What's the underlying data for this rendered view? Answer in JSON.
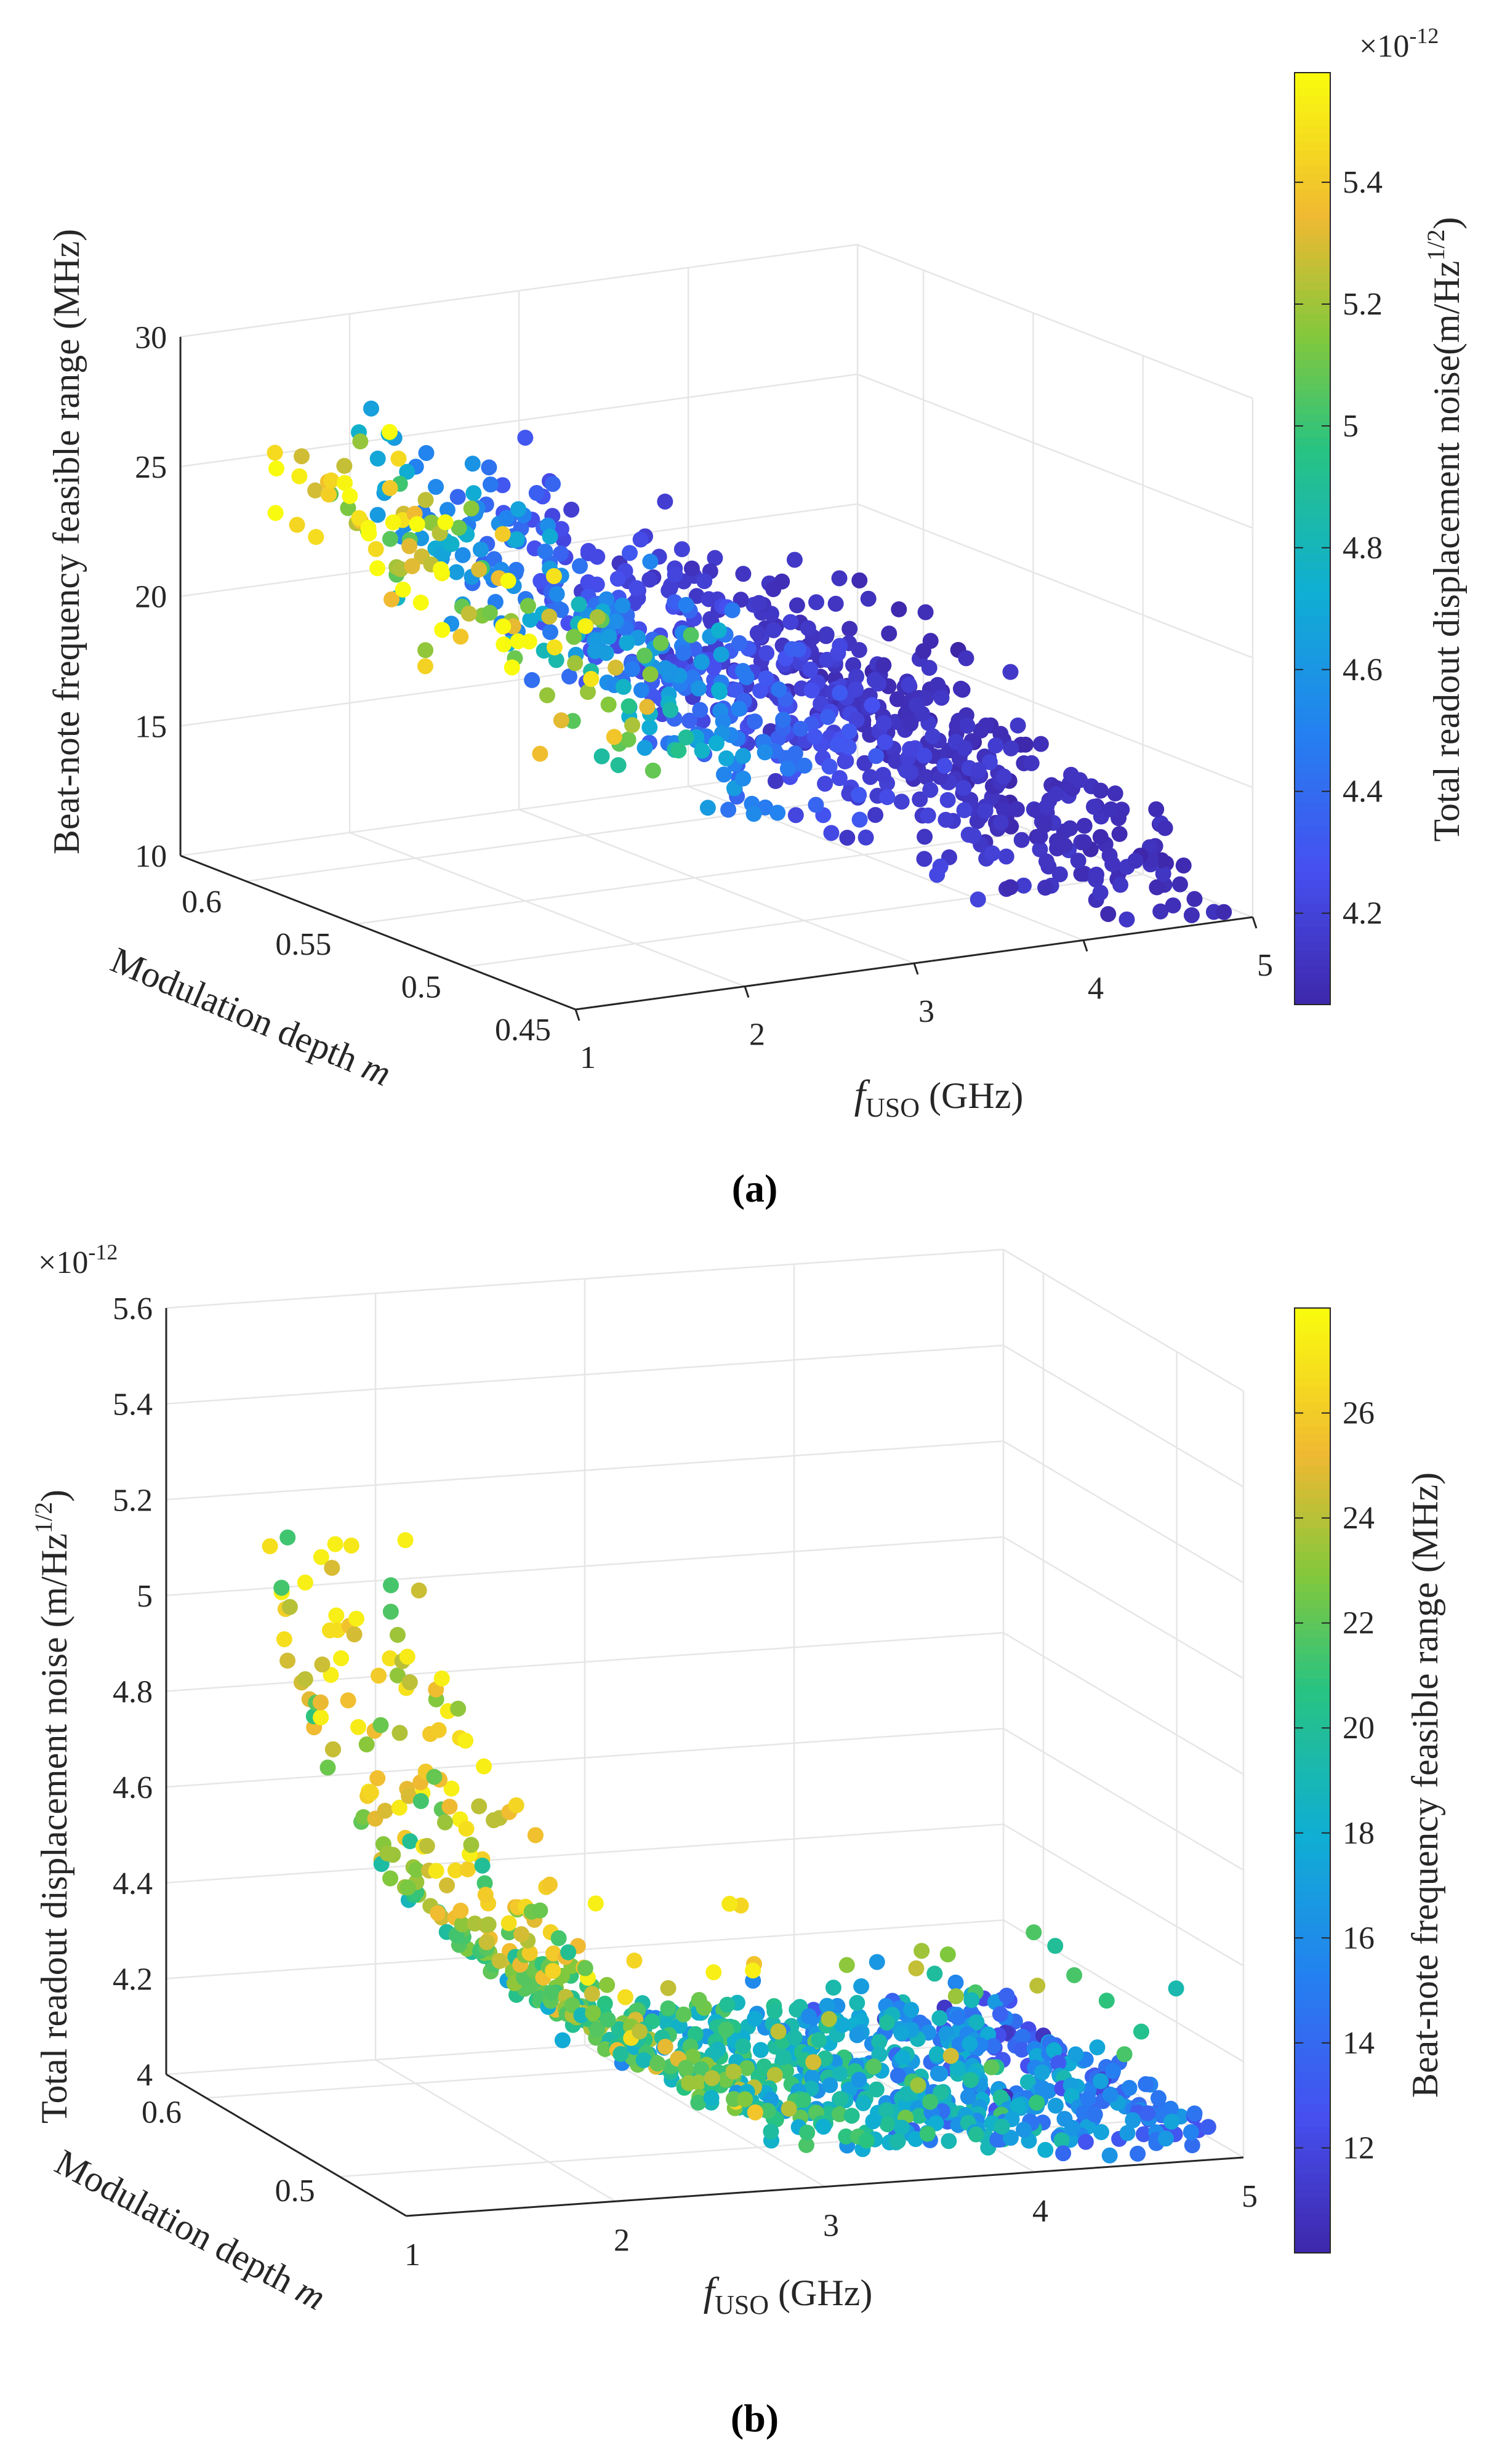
{
  "chart_data": [
    {
      "panel": "(a)",
      "type": "scatter3d",
      "x_label_pre": "f",
      "x_label_sub": "USO",
      "x_label_post": " (GHz)",
      "x_ticks": [
        "1",
        "2",
        "3",
        "4",
        "5"
      ],
      "x_range": [
        1,
        5
      ],
      "y_label_pre": "Modulation depth ",
      "y_label_var": "m",
      "y_ticks": [
        "0.45",
        "0.5",
        "0.55",
        "0.6"
      ],
      "y_range": [
        0.45,
        0.63
      ],
      "z_label": "Beat-note frequency feasible range (MHz)",
      "z_ticks": [
        "10",
        "15",
        "20",
        "25",
        "30"
      ],
      "z_range": [
        10,
        30
      ],
      "colorbar": {
        "label_pre": "Total readout displacement noise(m/Hz",
        "label_sup": "1/2",
        "label_post": ")",
        "exp_base": "×10",
        "exp_power": "-12",
        "ticks": [
          "4.2",
          "4.4",
          "4.6",
          "4.8",
          "5",
          "5.2",
          "5.4"
        ],
        "range": [
          4.05,
          5.58
        ]
      },
      "trend": "Noise decreases with f_USO (~5.4e-12 at 1.3 GHz down to ~4.1e-12 at 4.9 GHz); feasible range spans ~10–28 MHz, largest at low f_USO and high m",
      "sample_points": [
        {
          "f": 1.3,
          "m": 0.61,
          "range": 23.5,
          "noise": 5.45
        },
        {
          "f": 1.4,
          "m": 0.6,
          "range": 22.0,
          "noise": 5.3
        },
        {
          "f": 1.5,
          "m": 0.55,
          "range": 19.0,
          "noise": 4.9
        },
        {
          "f": 2.0,
          "m": 0.55,
          "range": 18.5,
          "noise": 4.65
        },
        {
          "f": 2.5,
          "m": 0.5,
          "range": 16.0,
          "noise": 4.45
        },
        {
          "f": 3.0,
          "m": 0.5,
          "range": 14.5,
          "noise": 4.35
        },
        {
          "f": 3.5,
          "m": 0.48,
          "range": 13.0,
          "noise": 4.25
        },
        {
          "f": 4.0,
          "m": 0.47,
          "range": 12.0,
          "noise": 4.15
        },
        {
          "f": 4.6,
          "m": 0.46,
          "range": 11.0,
          "noise": 4.1
        }
      ]
    },
    {
      "panel": "(b)",
      "type": "scatter3d",
      "x_label_pre": "f",
      "x_label_sub": "USO",
      "x_label_post": " (GHz)",
      "x_ticks": [
        "1",
        "2",
        "3",
        "4",
        "5"
      ],
      "x_range": [
        1,
        5
      ],
      "y_label_pre": "Modulation depth ",
      "y_label_var": "m",
      "y_ticks": [
        "0.5",
        "0.6"
      ],
      "y_range": [
        0.45,
        0.63
      ],
      "z_label_pre": "Total readout displacement noise (m/Hz",
      "z_label_sup": "1/2",
      "z_label_post": ")",
      "z_exp_base": "×10",
      "z_exp_power": "-12",
      "z_ticks": [
        "4",
        "4.2",
        "4.4",
        "4.6",
        "4.8",
        "5",
        "5.2",
        "5.4",
        "5.6"
      ],
      "z_range": [
        4.0,
        5.6
      ],
      "colorbar": {
        "label": "Beat-note frequency feasible range (MHz)",
        "ticks": [
          "12",
          "14",
          "16",
          "18",
          "20",
          "22",
          "24",
          "26"
        ],
        "range": [
          10,
          28
        ]
      },
      "trend": "Noise falls steeply from ~5.3e-12 at 1.3 GHz to ~4.2e-12 near 3 GHz and ~4.05e-12 at 4.9 GHz; points at low f_USO have the widest feasible range (~26 MHz)",
      "sample_points": [
        {
          "f": 1.3,
          "m": 0.6,
          "range": 26,
          "noise": 5.25
        },
        {
          "f": 1.5,
          "m": 0.58,
          "range": 24,
          "noise": 4.85
        },
        {
          "f": 2.0,
          "m": 0.55,
          "range": 20,
          "noise": 4.5
        },
        {
          "f": 2.5,
          "m": 0.52,
          "range": 18,
          "noise": 4.35
        },
        {
          "f": 3.0,
          "m": 0.5,
          "range": 16,
          "noise": 4.25
        },
        {
          "f": 3.5,
          "m": 0.49,
          "range": 15,
          "noise": 4.18
        },
        {
          "f": 4.0,
          "m": 0.48,
          "range": 14,
          "noise": 4.12
        },
        {
          "f": 4.5,
          "m": 0.47,
          "range": 12,
          "noise": 4.08
        },
        {
          "f": 4.9,
          "m": 0.46,
          "range": 11,
          "noise": 4.05
        }
      ]
    }
  ],
  "captions": {
    "a": "(a)",
    "b": "(b)"
  }
}
